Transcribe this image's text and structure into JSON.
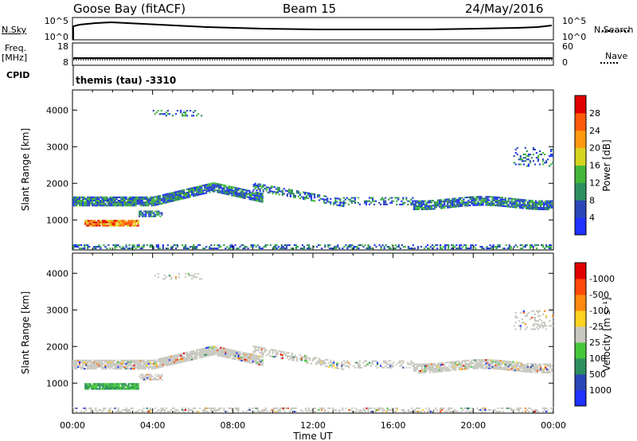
{
  "header": {
    "station": "Goose Bay (fitACF)",
    "beam": "Beam 15",
    "date": "24/May/2016"
  },
  "status_panels": {
    "nsky_label": "N.Sky",
    "nsearch_label": "N.Search",
    "nsky_ticks": [
      "10^5",
      "10^0"
    ],
    "freq_label_line1": "Freq.",
    "freq_label_line2": "[MHz]",
    "freq_ticks": [
      "18",
      "8"
    ],
    "nave_label": "Nave",
    "nave_ticks": [
      "60",
      "0"
    ],
    "cpid_label": "CPID",
    "cpid_value": "themis (tau) -3310"
  },
  "chart_data": [
    {
      "type": "heatmap",
      "name": "power",
      "ylabel": "Slant Range [km]",
      "yticks": [
        1000,
        2000,
        3000,
        4000
      ],
      "ylim": [
        180,
        4550
      ],
      "xlim": [
        0,
        24
      ],
      "colorbar": {
        "label": "Power [dB]",
        "ticks": [
          "4",
          "8",
          "12",
          "16",
          "20",
          "24",
          "28"
        ],
        "colors": [
          "#1f32ff",
          "#2a48b8",
          "#2d8f5e",
          "#45b83a",
          "#d5d51e",
          "#ff9a10",
          "#ff5a0a",
          "#e00000"
        ]
      }
    },
    {
      "type": "heatmap",
      "name": "velocity",
      "ylabel": "Slant Range [km]",
      "yticks": [
        1000,
        2000,
        3000,
        4000
      ],
      "ylim": [
        180,
        4550
      ],
      "xlim": [
        0,
        24
      ],
      "xticks": [
        "00:00",
        "04:00",
        "08:00",
        "12:00",
        "16:00",
        "20:00",
        "00:00"
      ],
      "xlabel": "Time UT",
      "colorbar": {
        "label": "Velocity [m s⁻¹]",
        "ticks": [
          "1000",
          "500",
          "100",
          "25",
          "-25",
          "-100",
          "-500",
          "-1000"
        ],
        "colors": [
          "#1f32ff",
          "#2a48b8",
          "#2d8f5e",
          "#45c83a",
          "#c8c8c0",
          "#ffd21e",
          "#ff8a10",
          "#ff4a0a",
          "#e00000"
        ]
      }
    }
  ]
}
